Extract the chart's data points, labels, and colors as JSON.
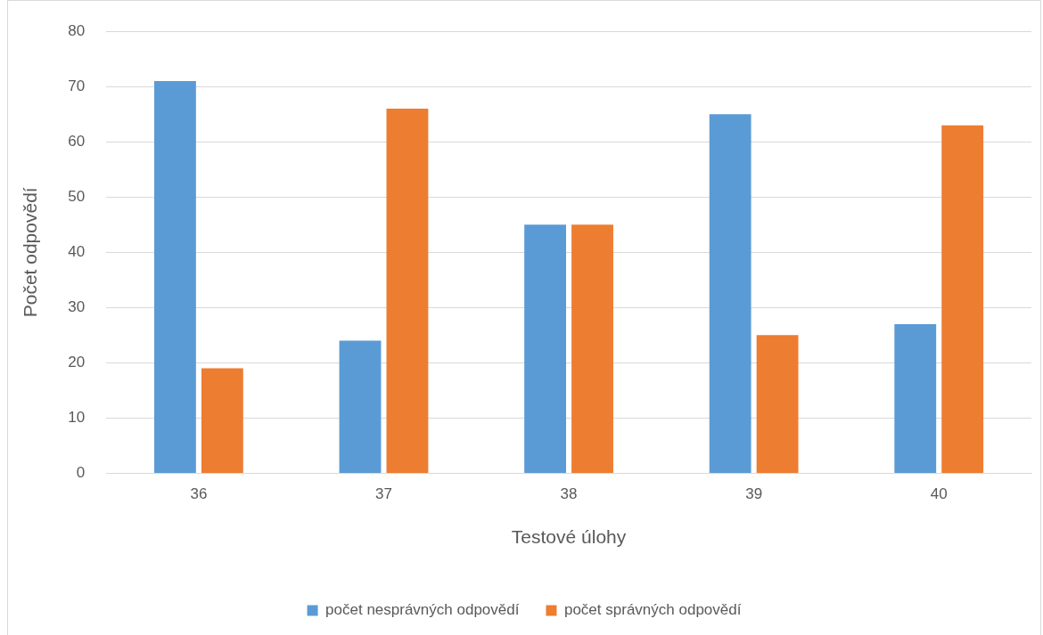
{
  "chart_data": {
    "type": "bar",
    "xlabel": "Testové úlohy",
    "ylabel": "Počet odpovědí",
    "categories": [
      "36",
      "37",
      "38",
      "39",
      "40"
    ],
    "series": [
      {
        "name": "počet nesprávných odpovědí",
        "color": "#5b9bd5",
        "values": [
          71,
          24,
          45,
          65,
          27
        ]
      },
      {
        "name": "počet správných odpovědí",
        "color": "#ed7d31",
        "values": [
          19,
          66,
          45,
          25,
          63
        ]
      }
    ],
    "ylim": [
      0,
      80
    ],
    "yticks": [
      0,
      10,
      20,
      30,
      40,
      50,
      60,
      70,
      80
    ],
    "grid": "y",
    "legend": "bottom"
  }
}
